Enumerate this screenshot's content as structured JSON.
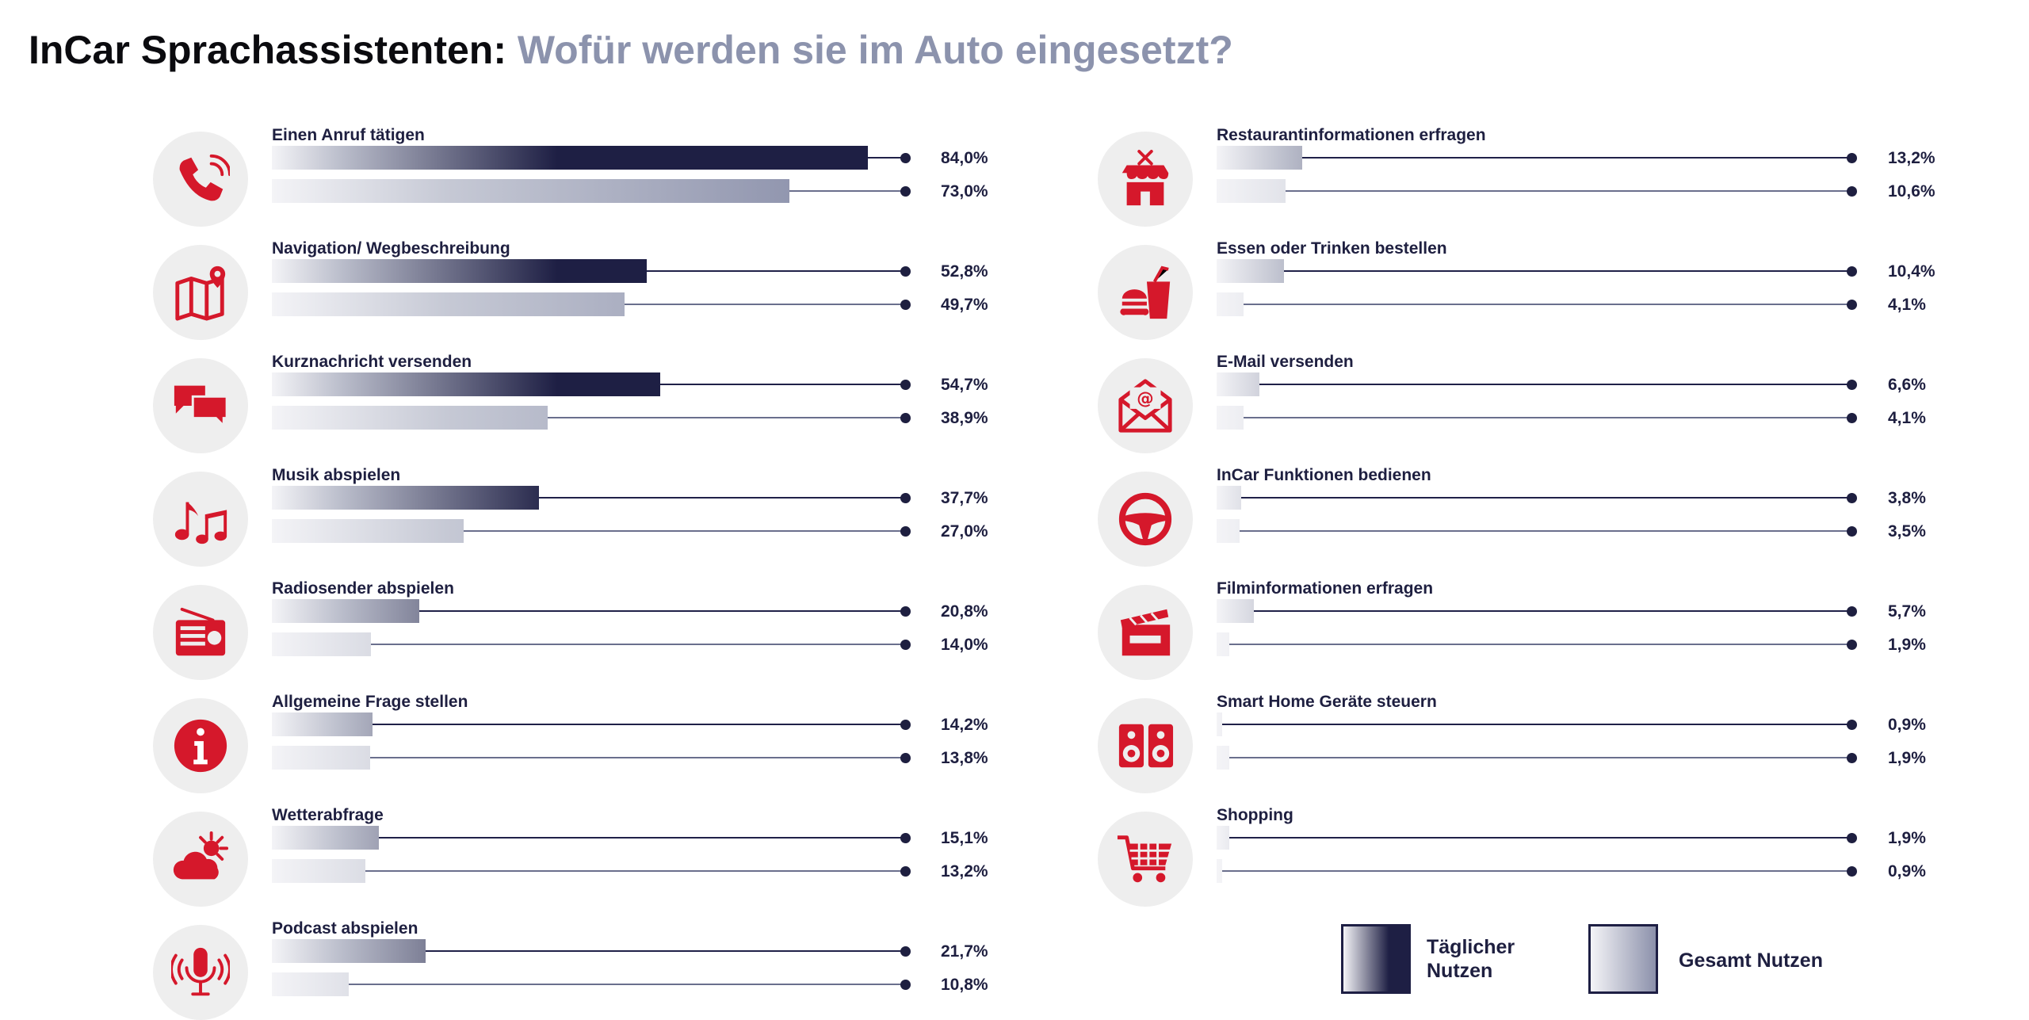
{
  "title": {
    "main": "InCar Sprachassistenten:",
    "question": "Wofür werden sie im Auto eingesetzt?"
  },
  "colors": {
    "daily": "#1e1f44",
    "total": "#8c91ab",
    "icon": "#d5182b",
    "icon_bg": "#eeeeee",
    "title_main": "#0b0b0f",
    "title_question": "#8c93ad"
  },
  "legend": {
    "daily_label": "Täglicher Nutzen",
    "total_label": "Gesamt Nutzen"
  },
  "chart_data": {
    "type": "bar",
    "orientation": "horizontal",
    "unit": "%",
    "xlim": [
      0,
      100
    ],
    "series": [
      {
        "name": "Täglicher Nutzen",
        "key": "daily"
      },
      {
        "name": "Gesamt Nutzen",
        "key": "total"
      }
    ],
    "items": [
      {
        "column": 0,
        "label": "Einen Anruf tätigen",
        "icon": "phone-icon",
        "daily": 84.0,
        "total": 73.0,
        "daily_label": "84,0%",
        "total_label": "73,0%"
      },
      {
        "column": 0,
        "label": "Navigation/ Wegbeschreibung",
        "icon": "map-icon",
        "daily": 52.8,
        "total": 49.7,
        "daily_label": "52,8%",
        "total_label": "49,7%"
      },
      {
        "column": 0,
        "label": "Kurznachricht versenden",
        "icon": "chat-icon",
        "daily": 54.7,
        "total": 38.9,
        "daily_label": "54,7%",
        "total_label": "38,9%"
      },
      {
        "column": 0,
        "label": "Musik abspielen",
        "icon": "music-icon",
        "daily": 37.7,
        "total": 27.0,
        "daily_label": "37,7%",
        "total_label": "27,0%"
      },
      {
        "column": 0,
        "label": "Radiosender abspielen",
        "icon": "radio-icon",
        "daily": 20.8,
        "total": 14.0,
        "daily_label": "20,8%",
        "total_label": "14,0%"
      },
      {
        "column": 0,
        "label": "Allgemeine Frage stellen",
        "icon": "info-icon",
        "daily": 14.2,
        "total": 13.8,
        "daily_label": "14,2%",
        "total_label": "13,8%"
      },
      {
        "column": 0,
        "label": "Wetterabfrage",
        "icon": "weather-icon",
        "daily": 15.1,
        "total": 13.2,
        "daily_label": "15,1%",
        "total_label": "13,2%"
      },
      {
        "column": 0,
        "label": "Podcast abspielen",
        "icon": "microphone-icon",
        "daily": 21.7,
        "total": 10.8,
        "daily_label": "21,7%",
        "total_label": "10,8%"
      },
      {
        "column": 1,
        "label": "Restaurantinformationen erfragen",
        "icon": "restaurant-icon",
        "daily": 13.2,
        "total": 10.6,
        "daily_label": "13,2%",
        "total_label": "10,6%"
      },
      {
        "column": 1,
        "label": "Essen oder Trinken bestellen",
        "icon": "food-drink-icon",
        "daily": 10.4,
        "total": 4.1,
        "daily_label": "10,4%",
        "total_label": "4,1%"
      },
      {
        "column": 1,
        "label": "E-Mail versenden",
        "icon": "email-icon",
        "daily": 6.6,
        "total": 4.1,
        "daily_label": "6,6%",
        "total_label": "4,1%"
      },
      {
        "column": 1,
        "label": "InCar Funktionen bedienen",
        "icon": "steering-wheel-icon",
        "daily": 3.8,
        "total": 3.5,
        "daily_label": "3,8%",
        "total_label": "3,5%"
      },
      {
        "column": 1,
        "label": "Filminformationen erfragen",
        "icon": "clapperboard-icon",
        "daily": 5.7,
        "total": 1.9,
        "daily_label": "5,7%",
        "total_label": "1,9%"
      },
      {
        "column": 1,
        "label": "Smart Home Geräte steuern",
        "icon": "speaker-icon",
        "daily": 0.9,
        "total": 1.9,
        "daily_label": "0,9%",
        "total_label": "1,9%"
      },
      {
        "column": 1,
        "label": "Shopping",
        "icon": "shopping-cart-icon",
        "daily": 1.9,
        "total": 0.9,
        "daily_label": "1,9%",
        "total_label": "0,9%"
      }
    ]
  }
}
